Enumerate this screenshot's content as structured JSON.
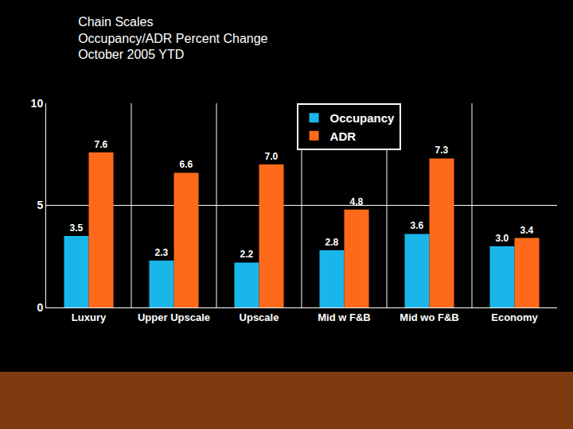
{
  "chart_data": {
    "type": "bar",
    "title": [
      "Chain Scales",
      "Occupancy/ADR Percent Change",
      "October 2005 YTD"
    ],
    "categories": [
      "Luxury",
      "Upper Upscale",
      "Upscale",
      "Mid w F&B",
      "Mid wo F&B",
      "Economy"
    ],
    "series": [
      {
        "name": "Occupancy",
        "color": "#1ab6ea",
        "values": [
          3.5,
          2.3,
          2.2,
          2.8,
          3.6,
          3.0
        ],
        "value_labels": [
          "3.5",
          "2.3",
          "2.2",
          "2.8",
          "3.6",
          "3.0"
        ]
      },
      {
        "name": "ADR",
        "color": "#ff6a1a",
        "values": [
          7.6,
          6.6,
          7.0,
          4.8,
          7.3,
          3.4
        ],
        "value_labels": [
          "7.6",
          "6.6",
          "7.0",
          "4.8",
          "7.3",
          "3.4"
        ]
      }
    ],
    "ylim": [
      0,
      10
    ],
    "yticks": [
      0,
      5,
      10
    ],
    "grid": true,
    "legend": "upper center",
    "data_labels": true
  }
}
